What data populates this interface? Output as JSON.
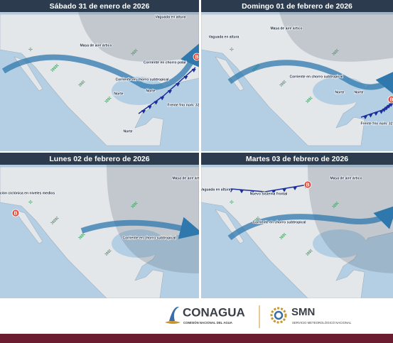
{
  "panels": [
    {
      "title": "Sábado 31 de enero de 2026",
      "labels": [
        "Vaguada en altura",
        "Masa de aire ártico",
        "Corriente en chorro polar",
        "Corriente en chorro subtropical",
        "Norte",
        "Norte",
        "Norte",
        "Frente frío núm. 32",
        "B"
      ]
    },
    {
      "title": "Domingo 01 de febrero de 2026",
      "labels": [
        "Vaguada en altura",
        "Masa de aire ártico",
        "Corriente en chorro subtropical",
        "Norte",
        "Norte",
        "Frente frío núm. 32",
        "B"
      ]
    },
    {
      "title": "Lunes 02 de febrero de 2026",
      "labels": [
        "Circulación ciclónica en niveles medios",
        "B",
        "Masa de aire ártico",
        "Corriente en chorro subtropical"
      ]
    },
    {
      "title": "Martes 03 de febrero de 2026",
      "labels": [
        "Vaguada en altura",
        "Nuevo Sistema frontal",
        "B",
        "Masa de aire ártico",
        "Corriente en chorro subtropical"
      ]
    }
  ],
  "footer": {
    "conagua": "CONAGUA",
    "conagua_sub": "COMISIÓN NACIONAL DEL AGUA",
    "smn": "SMN",
    "smn_sub": "SERVICIO METEOROLÓGICO NACIONAL"
  }
}
